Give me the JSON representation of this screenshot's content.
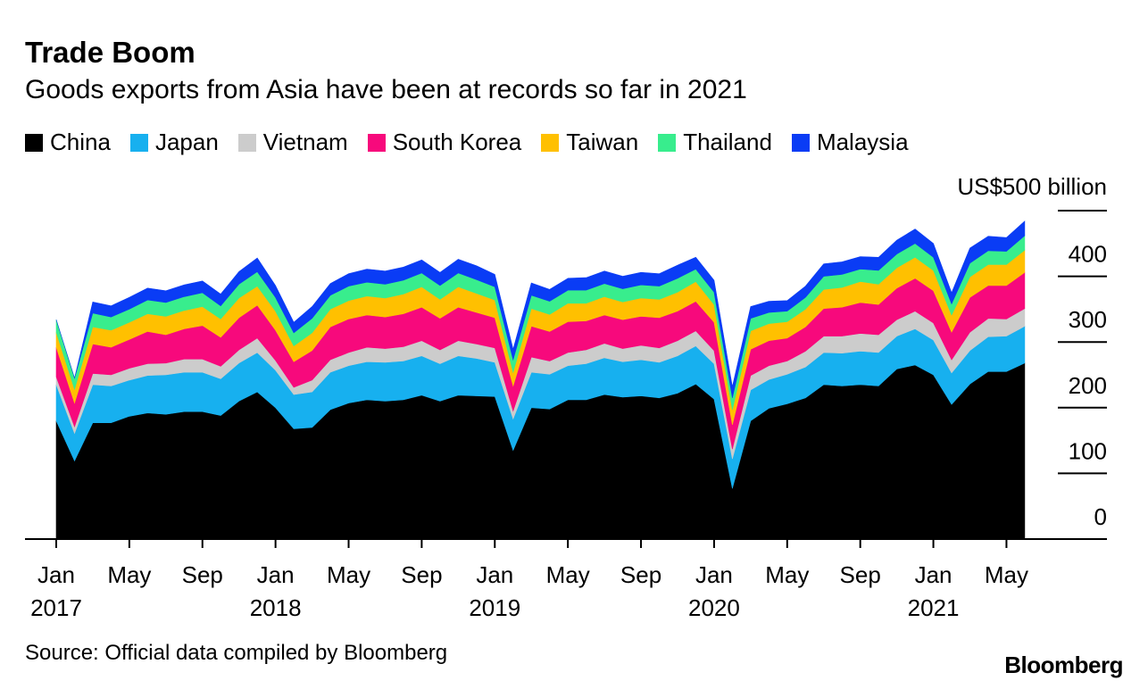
{
  "chart_data": {
    "type": "area",
    "stacked": true,
    "title": "Trade Boom",
    "subtitle": "Goods exports from Asia have been at records so far in 2021",
    "ylabel": "US$500 billion",
    "ylim": [
      0,
      500
    ],
    "yticks": [
      0,
      100,
      200,
      300,
      400
    ],
    "y_tick_labels": [
      "0",
      "100",
      "200",
      "300",
      "400"
    ],
    "x_tick_labels": [
      {
        "month": "Jan",
        "year": "2017"
      },
      {
        "month": "May",
        "year": ""
      },
      {
        "month": "Sep",
        "year": ""
      },
      {
        "month": "Jan",
        "year": "2018"
      },
      {
        "month": "May",
        "year": ""
      },
      {
        "month": "Sep",
        "year": ""
      },
      {
        "month": "Jan",
        "year": "2019"
      },
      {
        "month": "May",
        "year": ""
      },
      {
        "month": "Sep",
        "year": ""
      },
      {
        "month": "Jan",
        "year": "2020"
      },
      {
        "month": "May",
        "year": ""
      },
      {
        "month": "Sep",
        "year": ""
      },
      {
        "month": "Jan",
        "year": "2021"
      },
      {
        "month": "May",
        "year": ""
      }
    ],
    "categories": [
      "2017-01",
      "2017-02",
      "2017-03",
      "2017-04",
      "2017-05",
      "2017-06",
      "2017-07",
      "2017-08",
      "2017-09",
      "2017-10",
      "2017-11",
      "2017-12",
      "2018-01",
      "2018-02",
      "2018-03",
      "2018-04",
      "2018-05",
      "2018-06",
      "2018-07",
      "2018-08",
      "2018-09",
      "2018-10",
      "2018-11",
      "2018-12",
      "2019-01",
      "2019-02",
      "2019-03",
      "2019-04",
      "2019-05",
      "2019-06",
      "2019-07",
      "2019-08",
      "2019-09",
      "2019-10",
      "2019-11",
      "2019-12",
      "2020-01",
      "2020-02",
      "2020-03",
      "2020-04",
      "2020-05",
      "2020-06",
      "2020-07",
      "2020-08",
      "2020-09",
      "2020-10",
      "2020-11",
      "2020-12",
      "2021-01",
      "2021-02",
      "2021-03",
      "2021-04",
      "2021-05",
      "2021-06"
    ],
    "series": [
      {
        "name": "China",
        "color": "#000000",
        "values": [
          180,
          119,
          177,
          177,
          187,
          192,
          190,
          194,
          194,
          188,
          210,
          224,
          200,
          168,
          170,
          197,
          207,
          212,
          210,
          212,
          219,
          210,
          219,
          218,
          217,
          135,
          200,
          198,
          212,
          212,
          220,
          216,
          218,
          215,
          222,
          236,
          213,
          77,
          180,
          199,
          206,
          215,
          235,
          233,
          235,
          233,
          259,
          265,
          250,
          205,
          236,
          255,
          255,
          268
        ]
      },
      {
        "name": "Japan",
        "color": "#17b0ef",
        "values": [
          55,
          42,
          58,
          56,
          55,
          57,
          60,
          60,
          60,
          56,
          58,
          60,
          57,
          52,
          54,
          57,
          57,
          58,
          59,
          59,
          60,
          57,
          60,
          57,
          52,
          48,
          54,
          53,
          52,
          55,
          56,
          54,
          55,
          54,
          57,
          58,
          54,
          45,
          47,
          44,
          45,
          47,
          49,
          50,
          51,
          51,
          50,
          55,
          53,
          48,
          51,
          53,
          54,
          56
        ]
      },
      {
        "name": "Vietnam",
        "color": "#cccccc",
        "values": [
          12,
          10,
          17,
          17,
          18,
          18,
          18,
          20,
          20,
          19,
          20,
          22,
          15,
          11,
          18,
          19,
          20,
          22,
          21,
          22,
          23,
          21,
          23,
          22,
          22,
          12,
          23,
          20,
          20,
          21,
          22,
          20,
          22,
          22,
          23,
          23,
          20,
          15,
          22,
          21,
          20,
          24,
          25,
          26,
          27,
          27,
          25,
          27,
          26,
          20,
          28,
          28,
          26,
          27
        ]
      },
      {
        "name": "South Korea",
        "color": "#f7097c",
        "values": [
          45,
          36,
          45,
          42,
          44,
          49,
          43,
          46,
          51,
          44,
          49,
          50,
          46,
          39,
          45,
          50,
          51,
          49,
          48,
          50,
          51,
          48,
          51,
          48,
          46,
          38,
          47,
          45,
          47,
          44,
          43,
          44,
          44,
          46,
          45,
          45,
          43,
          37,
          40,
          38,
          35,
          37,
          42,
          44,
          47,
          46,
          48,
          50,
          49,
          42,
          53,
          50,
          51,
          55
        ]
      },
      {
        "name": "Taiwan",
        "color": "#ffc000",
        "values": [
          23,
          21,
          26,
          26,
          26,
          27,
          28,
          28,
          29,
          28,
          30,
          29,
          29,
          24,
          27,
          27,
          28,
          29,
          29,
          30,
          31,
          29,
          31,
          29,
          27,
          21,
          27,
          26,
          28,
          27,
          28,
          27,
          28,
          28,
          29,
          30,
          27,
          23,
          28,
          26,
          25,
          27,
          29,
          30,
          32,
          31,
          31,
          32,
          31,
          26,
          31,
          32,
          32,
          34
        ]
      },
      {
        "name": "Thailand",
        "color": "#38ed8d",
        "values": [
          19,
          17,
          21,
          20,
          20,
          21,
          21,
          21,
          21,
          20,
          21,
          22,
          21,
          20,
          22,
          21,
          22,
          21,
          21,
          21,
          21,
          21,
          21,
          21,
          20,
          19,
          20,
          20,
          20,
          20,
          20,
          20,
          20,
          20,
          21,
          19,
          19,
          18,
          19,
          17,
          16,
          18,
          20,
          20,
          19,
          21,
          21,
          21,
          20,
          17,
          21,
          21,
          20,
          22
        ]
      },
      {
        "name": "Malaysia",
        "color": "#0a3cf5",
        "values": [
          0,
          0,
          17,
          17,
          18,
          18,
          18,
          18,
          18,
          18,
          19,
          21,
          18,
          16,
          18,
          18,
          19,
          20,
          20,
          20,
          20,
          20,
          21,
          21,
          19,
          16,
          19,
          18,
          18,
          19,
          19,
          19,
          19,
          19,
          20,
          18,
          18,
          17,
          18,
          17,
          16,
          17,
          19,
          19,
          19,
          20,
          21,
          22,
          21,
          17,
          23,
          22,
          21,
          22
        ]
      }
    ],
    "legend_position": "top"
  },
  "source": "Source: Official data compiled by Bloomberg",
  "brand": "Bloomberg"
}
